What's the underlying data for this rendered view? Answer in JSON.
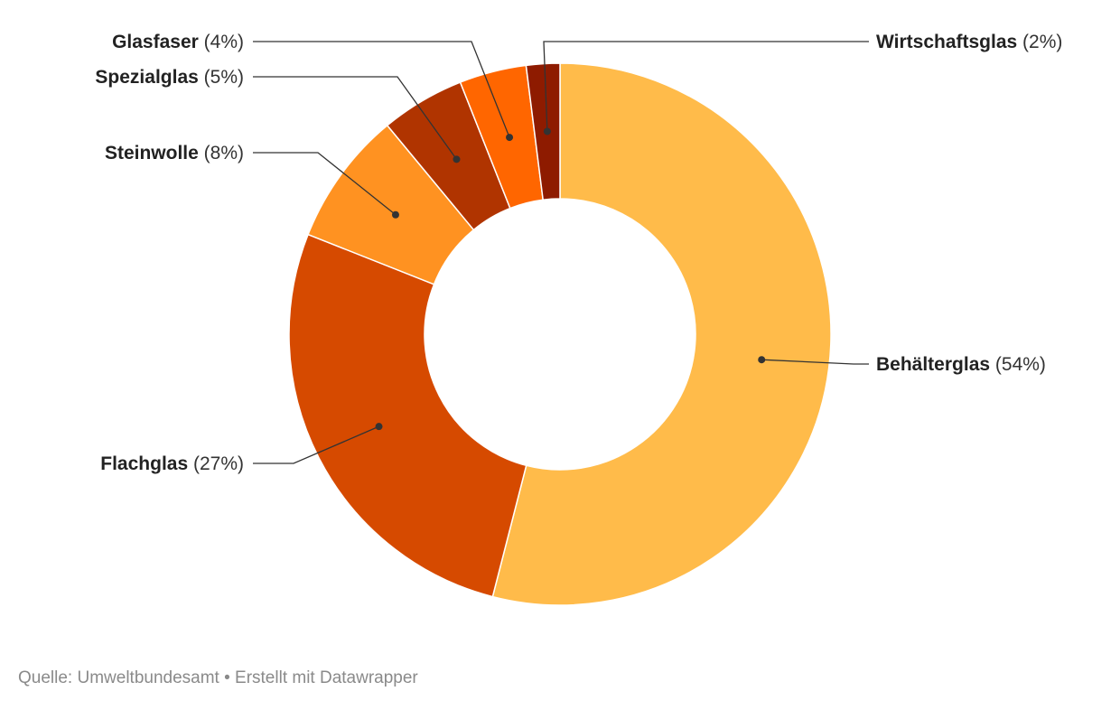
{
  "chart_data": {
    "type": "pie",
    "variant": "donut",
    "title": "",
    "categories": [
      "Behälterglas",
      "Flachglas",
      "Steinwolle",
      "Spezialglas",
      "Glasfaser",
      "Wirtschaftsglas"
    ],
    "values": [
      54,
      27,
      8,
      5,
      4,
      2
    ],
    "percent_labels": [
      "(54%)",
      "(27%)",
      "(8%)",
      "(5%)",
      "(4%)",
      "(2%)"
    ],
    "colors": [
      "#ffbb4a",
      "#d64a00",
      "#ff9221",
      "#b03400",
      "#ff6600",
      "#8e1b00"
    ],
    "legend": "none"
  },
  "footer": {
    "text": "Quelle: Umweltbundesamt • Erstellt mit Datawrapper"
  }
}
